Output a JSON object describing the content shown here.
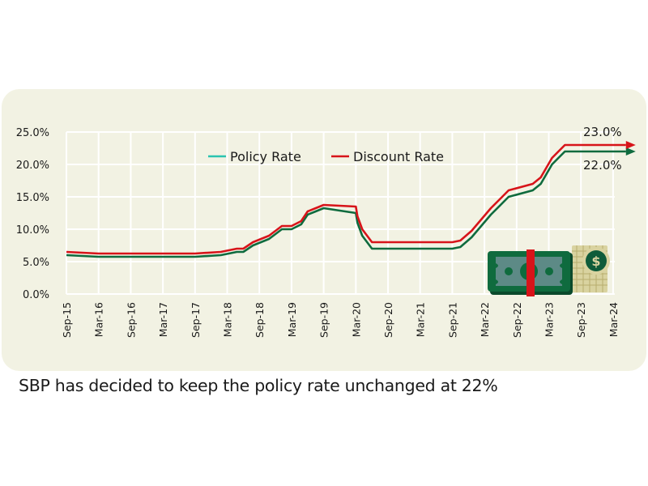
{
  "caption": "SBP has decided to keep the policy rate unchanged at 22%",
  "chart_data": {
    "type": "line",
    "title": "",
    "xlabel": "",
    "ylabel": "",
    "ylim": [
      0,
      25
    ],
    "y_ticks": [
      "0.0%",
      "5.0%",
      "10.0%",
      "15.0%",
      "20.0%",
      "25.0%"
    ],
    "y_tick_values": [
      0,
      5,
      10,
      15,
      20,
      25
    ],
    "x_ticks": [
      "Sep-15",
      "Mar-16",
      "Sep-16",
      "Mar-17",
      "Sep-17",
      "Mar-18",
      "Sep-18",
      "Mar-19",
      "Sep-19",
      "Mar-20",
      "Sep-20",
      "Mar-21",
      "Sep-21",
      "Mar-22",
      "Sep-22",
      "Mar-23",
      "Sep-23",
      "Mar-24"
    ],
    "grid": true,
    "legend_position": "top-center",
    "series": [
      {
        "name": "Policy Rate",
        "color": "#0f6b3e",
        "legend_color": "#2bc4b0",
        "points": [
          [
            0,
            6.0
          ],
          [
            1,
            5.75
          ],
          [
            2,
            5.75
          ],
          [
            3,
            5.75
          ],
          [
            4,
            5.75
          ],
          [
            4.8,
            6.0
          ],
          [
            5.3,
            6.5
          ],
          [
            5.5,
            6.5
          ],
          [
            5.8,
            7.5
          ],
          [
            6.3,
            8.5
          ],
          [
            6.7,
            10.0
          ],
          [
            7.0,
            10.0
          ],
          [
            7.3,
            10.75
          ],
          [
            7.5,
            12.25
          ],
          [
            7.75,
            12.75
          ],
          [
            8.0,
            13.25
          ],
          [
            9.0,
            12.5
          ],
          [
            9.05,
            11.0
          ],
          [
            9.2,
            9.0
          ],
          [
            9.5,
            7.0
          ],
          [
            12.0,
            7.0
          ],
          [
            12.25,
            7.25
          ],
          [
            12.6,
            8.75
          ],
          [
            13.2,
            12.25
          ],
          [
            13.5,
            13.75
          ],
          [
            13.75,
            15.0
          ],
          [
            14.5,
            16.0
          ],
          [
            14.75,
            17.0
          ],
          [
            15.1,
            20.0
          ],
          [
            15.3,
            21.0
          ],
          [
            15.5,
            22.0
          ],
          [
            17.4,
            22.0
          ]
        ]
      },
      {
        "name": "Discount Rate",
        "color": "#d7141a",
        "legend_color": "#d7141a",
        "points": [
          [
            0,
            6.5
          ],
          [
            1,
            6.25
          ],
          [
            2,
            6.25
          ],
          [
            3,
            6.25
          ],
          [
            4,
            6.25
          ],
          [
            4.8,
            6.5
          ],
          [
            5.3,
            7.0
          ],
          [
            5.5,
            7.0
          ],
          [
            5.8,
            8.0
          ],
          [
            6.3,
            9.0
          ],
          [
            6.7,
            10.5
          ],
          [
            7.0,
            10.5
          ],
          [
            7.3,
            11.25
          ],
          [
            7.5,
            12.75
          ],
          [
            7.75,
            13.25
          ],
          [
            8.0,
            13.75
          ],
          [
            9.0,
            13.5
          ],
          [
            9.05,
            12.0
          ],
          [
            9.2,
            10.0
          ],
          [
            9.5,
            8.0
          ],
          [
            12.0,
            8.0
          ],
          [
            12.25,
            8.25
          ],
          [
            12.6,
            9.75
          ],
          [
            13.2,
            13.25
          ],
          [
            13.5,
            14.75
          ],
          [
            13.75,
            16.0
          ],
          [
            14.5,
            17.0
          ],
          [
            14.75,
            18.0
          ],
          [
            15.1,
            21.0
          ],
          [
            15.3,
            22.0
          ],
          [
            15.5,
            23.0
          ],
          [
            17.4,
            23.0
          ]
        ]
      }
    ],
    "annotations": [
      {
        "text": "23.0%",
        "series": "Discount Rate",
        "value": 23.0
      },
      {
        "text": "22.0%",
        "series": "Policy Rate",
        "value": 22.0
      }
    ]
  },
  "illustration": {
    "name": "cash-bundle-and-coins",
    "dollar_symbol": "$"
  }
}
